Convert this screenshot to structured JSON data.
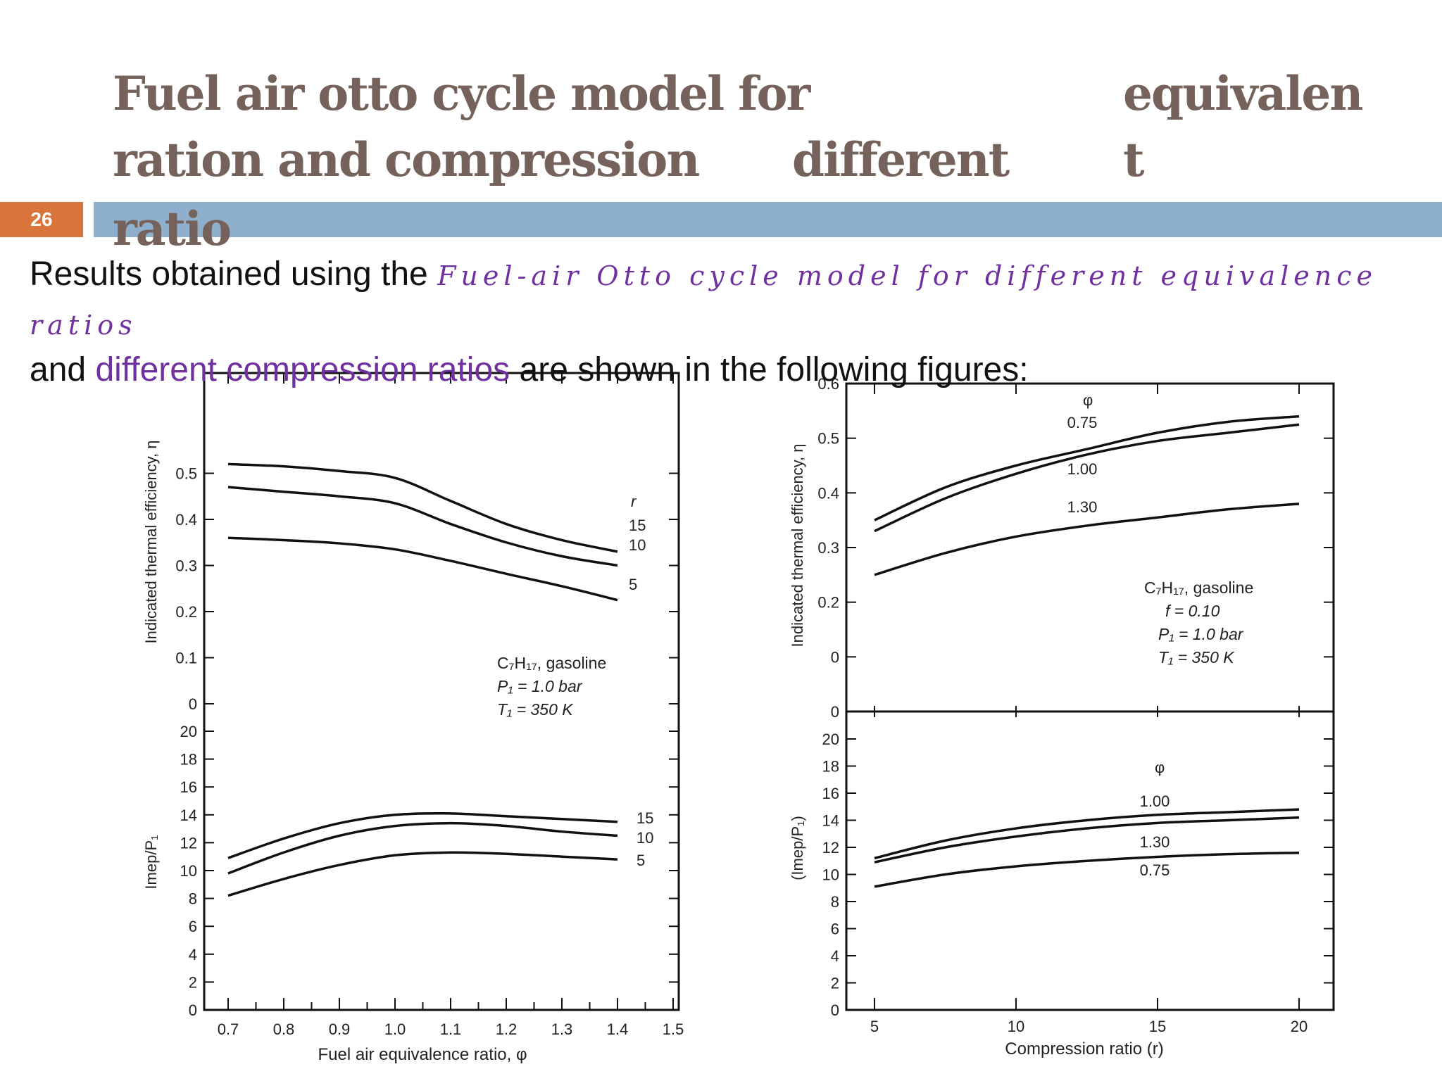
{
  "slide": {
    "page_number": "26",
    "title_lines": [
      "Fuel air otto cycle model for",
      "ration and compression",
      "ratio"
    ],
    "title_col_words": [
      "different"
    ],
    "title_right_lines": [
      "equivalen",
      "t"
    ],
    "results_prefix": "Results obtained using the",
    "results_script": "Fuel-air Otto cycle model for different equivalence",
    "results_script_wrap": "ratios",
    "and_word": "and",
    "purple_phrase": "different compression ratios",
    "suffix": "are shown in the following figures:"
  },
  "colors": {
    "title": "#75625a",
    "bar": "#8fb0cd",
    "page_box": "#d9753b",
    "accent": "#7030a0"
  },
  "chart_data": [
    {
      "type": "line",
      "panel": "efficiency vs equivalence ratio",
      "xlabel": "Fuel air equivalence ratio, φ",
      "ylabel": "Indicated thermal efficiency, η",
      "xlim": [
        0.7,
        1.5
      ],
      "ylim": [
        0,
        0.6
      ],
      "x_ticks": [
        "0.7",
        "0.8",
        "0.9",
        "1.0",
        "1.1",
        "1.2",
        "1.3",
        "1.4",
        "1.5"
      ],
      "y_ticks": [
        "0",
        "0.1",
        "0.2",
        "0.3",
        "0.4",
        "0.5"
      ],
      "legend_title": "r",
      "annotation": [
        "C₇H₁₇, gasoline",
        "P₁ = 1.0 bar",
        "T₁ = 350 K"
      ],
      "x": [
        0.7,
        0.8,
        0.9,
        1.0,
        1.1,
        1.2,
        1.3,
        1.4
      ],
      "series": [
        {
          "name": "15",
          "values": [
            0.52,
            0.515,
            0.505,
            0.49,
            0.44,
            0.39,
            0.355,
            0.33
          ]
        },
        {
          "name": "10",
          "values": [
            0.47,
            0.46,
            0.45,
            0.435,
            0.39,
            0.35,
            0.32,
            0.3
          ]
        },
        {
          "name": "5",
          "values": [
            0.36,
            0.355,
            0.348,
            0.335,
            0.31,
            0.282,
            0.255,
            0.225
          ]
        }
      ]
    },
    {
      "type": "line",
      "panel": "imep vs equivalence ratio",
      "xlabel": "Fuel air equivalence ratio, φ",
      "ylabel": "Imep/P₁",
      "xlim": [
        0.7,
        1.5
      ],
      "ylim": [
        0,
        20
      ],
      "y_ticks": [
        "0",
        "2",
        "4",
        "6",
        "8",
        "10",
        "12",
        "14",
        "16",
        "18",
        "20"
      ],
      "x": [
        0.7,
        0.8,
        0.9,
        1.0,
        1.1,
        1.2,
        1.3,
        1.4
      ],
      "series": [
        {
          "name": "15",
          "values": [
            10.9,
            12.3,
            13.4,
            14.0,
            14.1,
            13.9,
            13.7,
            13.5
          ]
        },
        {
          "name": "10",
          "values": [
            9.8,
            11.3,
            12.5,
            13.2,
            13.4,
            13.2,
            12.8,
            12.5
          ]
        },
        {
          "name": "5",
          "values": [
            8.2,
            9.4,
            10.4,
            11.1,
            11.3,
            11.2,
            11.0,
            10.8
          ]
        }
      ]
    },
    {
      "type": "line",
      "panel": "efficiency vs compression ratio",
      "xlabel": "Compression ratio (r)",
      "ylabel": "Indicated thermal efficiency, η",
      "xlim": [
        4,
        21
      ],
      "ylim": [
        0,
        0.6
      ],
      "x_ticks": [
        "5",
        "10",
        "15",
        "20"
      ],
      "y_ticks": [
        "0",
        "0",
        "0.2",
        "0.3",
        "0.4",
        "0.5",
        "0.6"
      ],
      "legend_title": "φ",
      "annotation": [
        "C₇H₁₇, gasoline",
        "f = 0.10",
        "P₁ = 1.0 bar",
        "T₁ = 350 K"
      ],
      "x": [
        5,
        7.5,
        10,
        12.5,
        15,
        17.5,
        20
      ],
      "series": [
        {
          "name": "0.75",
          "values": [
            0.35,
            0.41,
            0.45,
            0.48,
            0.51,
            0.53,
            0.54
          ]
        },
        {
          "name": "1.00",
          "values": [
            0.33,
            0.39,
            0.435,
            0.47,
            0.495,
            0.51,
            0.525
          ]
        },
        {
          "name": "1.30",
          "values": [
            0.25,
            0.29,
            0.32,
            0.34,
            0.355,
            0.37,
            0.38
          ]
        }
      ]
    },
    {
      "type": "line",
      "panel": "imep vs compression ratio",
      "xlabel": "Compression ratio (r)",
      "ylabel": "(Imep/P₁)",
      "xlim": [
        4,
        21
      ],
      "ylim": [
        0,
        20
      ],
      "y_ticks": [
        "0",
        "2",
        "4",
        "6",
        "8",
        "10",
        "12",
        "14",
        "16",
        "18",
        "20"
      ],
      "legend_title": "φ",
      "x": [
        5,
        7.5,
        10,
        12.5,
        15,
        17.5,
        20
      ],
      "series": [
        {
          "name": "1.00",
          "values": [
            11.2,
            12.5,
            13.4,
            14.0,
            14.4,
            14.6,
            14.8
          ]
        },
        {
          "name": "1.30",
          "values": [
            10.9,
            12.0,
            12.8,
            13.4,
            13.8,
            14.0,
            14.2
          ]
        },
        {
          "name": "0.75",
          "values": [
            9.1,
            10.0,
            10.6,
            11.0,
            11.3,
            11.5,
            11.6
          ]
        }
      ]
    }
  ]
}
